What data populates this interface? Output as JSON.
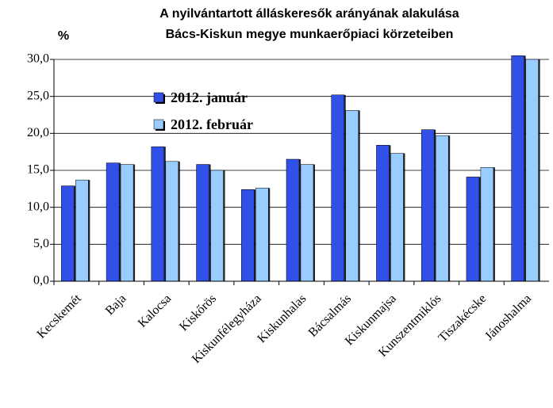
{
  "chart_data": {
    "type": "bar",
    "title": [
      "A nyilvántartott álláskeresők arányának alakulása",
      "Bács-Kiskun megye munkaerőpiaci körzeteiben"
    ],
    "y_label": "%",
    "categories": [
      "Kecskemét",
      "Baja",
      "Kalocsa",
      "Kiskőrös",
      "Kiskunfélegyháza",
      "Kiskunhalas",
      "Bácsalmás",
      "Kiskunmajsa",
      "Kunszentmiklós",
      "Tiszakécske",
      "Jánoshalma"
    ],
    "series": [
      {
        "name": "2012. január",
        "color": "#3050e8",
        "values": [
          12.9,
          16.0,
          18.2,
          15.8,
          12.4,
          16.5,
          25.2,
          18.4,
          20.5,
          14.1,
          30.5
        ]
      },
      {
        "name": "2012. február",
        "color": "#99ccff",
        "values": [
          13.7,
          15.8,
          16.2,
          15.0,
          12.6,
          15.8,
          23.1,
          17.3,
          19.7,
          15.4,
          30.0
        ]
      }
    ],
    "ylim": [
      0,
      30
    ],
    "yticks": [
      {
        "value": 0,
        "label": "0,0"
      },
      {
        "value": 5,
        "label": "5,0"
      },
      {
        "value": 10,
        "label": "10,0"
      },
      {
        "value": 15,
        "label": "15,0"
      },
      {
        "value": 20,
        "label": "20,0"
      },
      {
        "value": 25,
        "label": "25,0"
      },
      {
        "value": 30,
        "label": "30,0"
      }
    ],
    "grid": true
  }
}
